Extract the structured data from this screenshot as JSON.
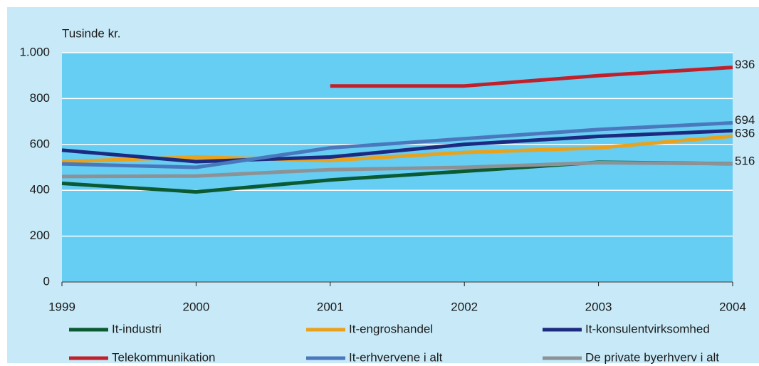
{
  "chart_data": {
    "type": "line",
    "y_label": "Tusinde kr.",
    "x": [
      1999,
      2000,
      2001,
      2002,
      2003,
      2004
    ],
    "xticks": [
      1999,
      2000,
      2001,
      2002,
      2003,
      2004
    ],
    "xlim": [
      1999,
      2004
    ],
    "ylim": [
      0,
      1000
    ],
    "yticks": [
      0,
      200,
      400,
      600,
      800,
      {
        "value": 1000,
        "label": "1.000"
      }
    ],
    "grid": true,
    "series": [
      {
        "name": "It-industri",
        "color": "#0b5a32",
        "values": [
          430,
          393,
          445,
          483,
          522,
          516
        ]
      },
      {
        "name": "It-engroshandel",
        "color": "#e8a21e",
        "values": [
          525,
          545,
          530,
          565,
          585,
          636
        ],
        "labeled": true
      },
      {
        "name": "It-konsulentvirksomhed",
        "color": "#1c2a80",
        "values": [
          575,
          525,
          545,
          600,
          635,
          660
        ]
      },
      {
        "name": "Telekommunikation",
        "color": "#c0202a",
        "values": [
          null,
          null,
          855,
          855,
          900,
          936
        ],
        "labeled": true
      },
      {
        "name": "It-erhvervene i alt",
        "color": "#4a78bc",
        "values": [
          515,
          500,
          585,
          625,
          665,
          694
        ],
        "labeled": true
      },
      {
        "name": "De private byerhverv i alt",
        "color": "#8c9296",
        "values": [
          460,
          462,
          490,
          500,
          520,
          516
        ],
        "labeled": true
      }
    ]
  }
}
